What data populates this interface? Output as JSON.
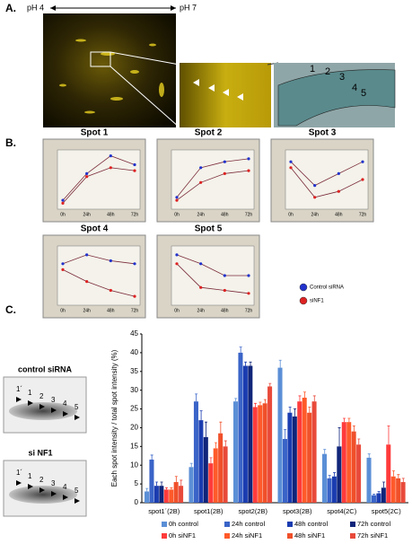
{
  "figure": {
    "panel_a": {
      "label": "A.",
      "ph_low": "pH 4",
      "ph_high": "pH 7",
      "spot_numbers": [
        "1",
        "2",
        "3",
        "4",
        "5"
      ]
    },
    "panel_b": {
      "label": "B."
    },
    "panel_c": {
      "label": "C.",
      "gel_control_title": "control siRNA",
      "gel_si_title": "si NF1",
      "gel_labels": [
        "1´",
        "1",
        "2",
        "3",
        "4",
        "5"
      ]
    }
  },
  "chart_data": [
    {
      "type": "line",
      "title": "Spot 1",
      "categories": [
        "0h",
        "24h",
        "48h",
        "72h"
      ],
      "ylim": [
        0,
        1
      ],
      "series": [
        {
          "name": "Control siRNA",
          "color": "#2233cc",
          "values": [
            0.15,
            0.6,
            0.9,
            0.75
          ]
        },
        {
          "name": "siNF1",
          "color": "#dd2222",
          "values": [
            0.1,
            0.55,
            0.7,
            0.65
          ]
        }
      ]
    },
    {
      "type": "line",
      "title": "Spot 2",
      "categories": [
        "0h",
        "24h",
        "48h",
        "72h"
      ],
      "ylim": [
        0,
        1
      ],
      "series": [
        {
          "name": "Control siRNA",
          "color": "#2233cc",
          "values": [
            0.2,
            0.7,
            0.8,
            0.85
          ]
        },
        {
          "name": "siNF1",
          "color": "#dd2222",
          "values": [
            0.15,
            0.45,
            0.6,
            0.65
          ]
        }
      ]
    },
    {
      "type": "line",
      "title": "Spot 3",
      "categories": [
        "0h",
        "24h",
        "48h",
        "72h"
      ],
      "ylim": [
        0,
        1
      ],
      "series": [
        {
          "name": "Control siRNA",
          "color": "#2233cc",
          "values": [
            0.8,
            0.4,
            0.6,
            0.8
          ]
        },
        {
          "name": "siNF1",
          "color": "#dd2222",
          "values": [
            0.7,
            0.2,
            0.3,
            0.5
          ]
        }
      ]
    },
    {
      "type": "line",
      "title": "Spot 4",
      "categories": [
        "0h",
        "24h",
        "48h",
        "72h"
      ],
      "ylim": [
        0,
        1
      ],
      "series": [
        {
          "name": "Control siRNA",
          "color": "#2233cc",
          "values": [
            0.7,
            0.85,
            0.75,
            0.7
          ]
        },
        {
          "name": "siNF1",
          "color": "#dd2222",
          "values": [
            0.6,
            0.4,
            0.25,
            0.15
          ]
        }
      ]
    },
    {
      "type": "line",
      "title": "Spot 5",
      "categories": [
        "0h",
        "24h",
        "48h",
        "72h"
      ],
      "ylim": [
        0,
        1
      ],
      "series": [
        {
          "name": "Control siRNA",
          "color": "#2233cc",
          "values": [
            0.85,
            0.7,
            0.5,
            0.5
          ]
        },
        {
          "name": "siNF1",
          "color": "#dd2222",
          "values": [
            0.7,
            0.3,
            0.25,
            0.2
          ]
        }
      ]
    },
    {
      "type": "bar",
      "ylabel": "Each spot intensity / total spot intensity (%)",
      "categories": [
        "spot1´(2B)",
        "spot1(2B)",
        "spot2(2B)",
        "spot3(2B)",
        "spot4(2C)",
        "spot5(2C)"
      ],
      "ylim": [
        0,
        45
      ],
      "yticks": [
        0,
        5,
        10,
        15,
        20,
        25,
        30,
        35,
        40,
        45
      ],
      "series": [
        {
          "name": "0h control",
          "color": "#5b8fd6",
          "values": [
            3,
            9.5,
            27,
            36,
            13,
            12
          ],
          "errors": [
            0.8,
            1,
            0.8,
            2,
            1.2,
            1
          ]
        },
        {
          "name": "24h control",
          "color": "#3a64c8",
          "values": [
            11.5,
            27,
            40,
            17,
            6.5,
            2
          ],
          "errors": [
            1.2,
            2,
            1.5,
            2.5,
            0.8,
            0.3
          ]
        },
        {
          "name": "48h control",
          "color": "#1a3cb0",
          "values": [
            4.5,
            22,
            36.5,
            24,
            7,
            2.5
          ],
          "errors": [
            1,
            2.5,
            1,
            1.5,
            1,
            0.5
          ]
        },
        {
          "name": "72h control",
          "color": "#10257a",
          "values": [
            4.5,
            17.5,
            36.5,
            23,
            15,
            4
          ],
          "errors": [
            1,
            4,
            1,
            2,
            5,
            1.5
          ]
        },
        {
          "name": "0h siNF1",
          "color": "#ff3b3b",
          "values": [
            3.5,
            10.5,
            25.5,
            27,
            21.5,
            15.5
          ],
          "errors": [
            0.5,
            1.5,
            1,
            1.5,
            1,
            5
          ]
        },
        {
          "name": "24h siNF1",
          "color": "#ff5a2a",
          "values": [
            3.5,
            14.5,
            26,
            28,
            21.5,
            7
          ],
          "errors": [
            0.5,
            1.5,
            0.8,
            1.5,
            1,
            1.5
          ]
        },
        {
          "name": "48h siNF1",
          "color": "#f0502a",
          "values": [
            5.5,
            18.5,
            26.5,
            24,
            19,
            6.5
          ],
          "errors": [
            1.5,
            3,
            1,
            1.5,
            1.5,
            1
          ]
        },
        {
          "name": "72h siNF1",
          "color": "#e84a3a",
          "values": [
            4.5,
            15,
            31,
            27,
            15.5,
            5.5
          ],
          "errors": [
            1.5,
            1.5,
            0.8,
            1.5,
            1.5,
            1
          ]
        }
      ]
    }
  ]
}
